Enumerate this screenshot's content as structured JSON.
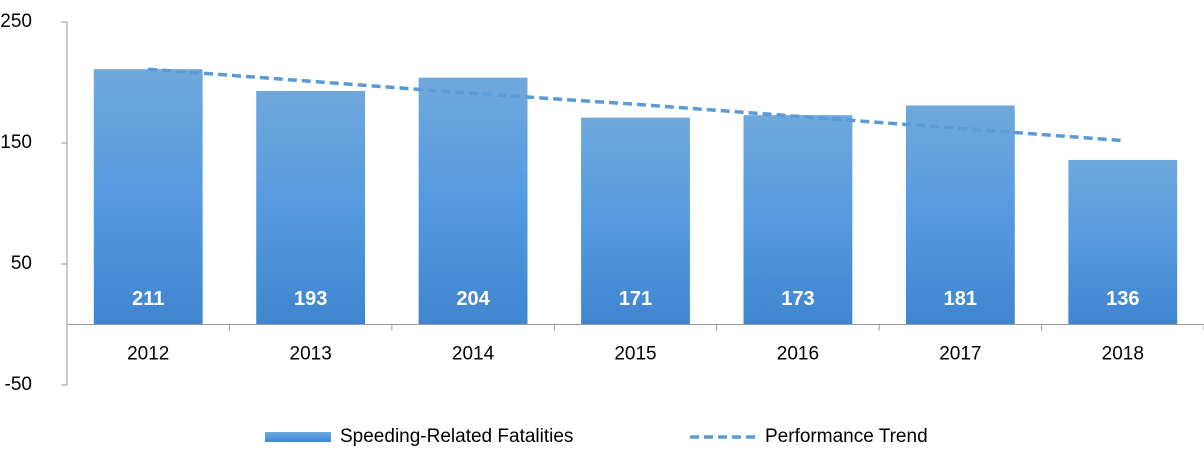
{
  "chart_data": {
    "type": "bar",
    "categories": [
      "2012",
      "2013",
      "2014",
      "2015",
      "2016",
      "2017",
      "2018"
    ],
    "series": [
      {
        "name": "Speeding-Related Fatalities",
        "type": "bar",
        "color": "#5b9bd5",
        "values": [
          211,
          193,
          204,
          171,
          173,
          181,
          136
        ]
      },
      {
        "name": "Performance Trend",
        "type": "line",
        "color": "#5b9bd5",
        "values": [
          211,
          201,
          191,
          182,
          172,
          162,
          152
        ]
      }
    ],
    "ylim": [
      -50,
      250
    ],
    "yticks": [
      -50,
      50,
      150,
      250
    ],
    "grid": false,
    "legend": "bottom"
  }
}
